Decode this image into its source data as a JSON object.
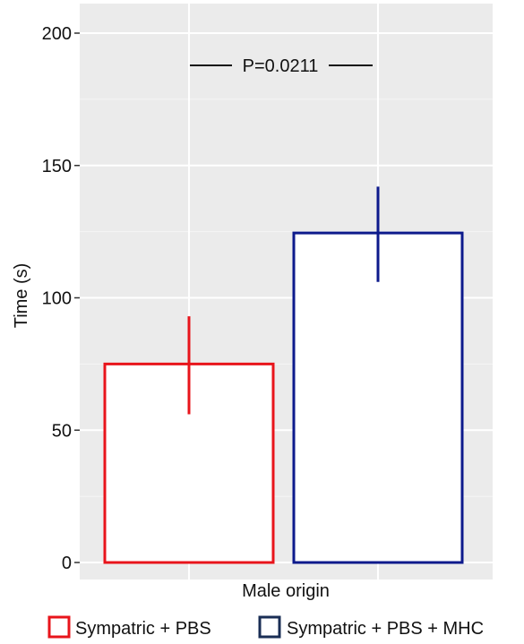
{
  "chart_data": {
    "type": "bar",
    "xlabel": "Male origin",
    "ylabel": "Time (s)",
    "ylim": [
      0,
      210
    ],
    "yticks": [
      0,
      50,
      100,
      150,
      200
    ],
    "grid": true,
    "legend_position": "bottom",
    "annotation": "P=0.0211",
    "series": [
      {
        "name": "Sympatric + PBS",
        "value": 75,
        "error": [
          56,
          93
        ],
        "color": "#e8141b"
      },
      {
        "name": "Sympatric + PBS + MHC",
        "value": 124.5,
        "error": [
          106,
          142
        ],
        "color": "#0d1a8c"
      }
    ],
    "legend_colors": [
      "#e8141b",
      "#1a2e55"
    ]
  }
}
